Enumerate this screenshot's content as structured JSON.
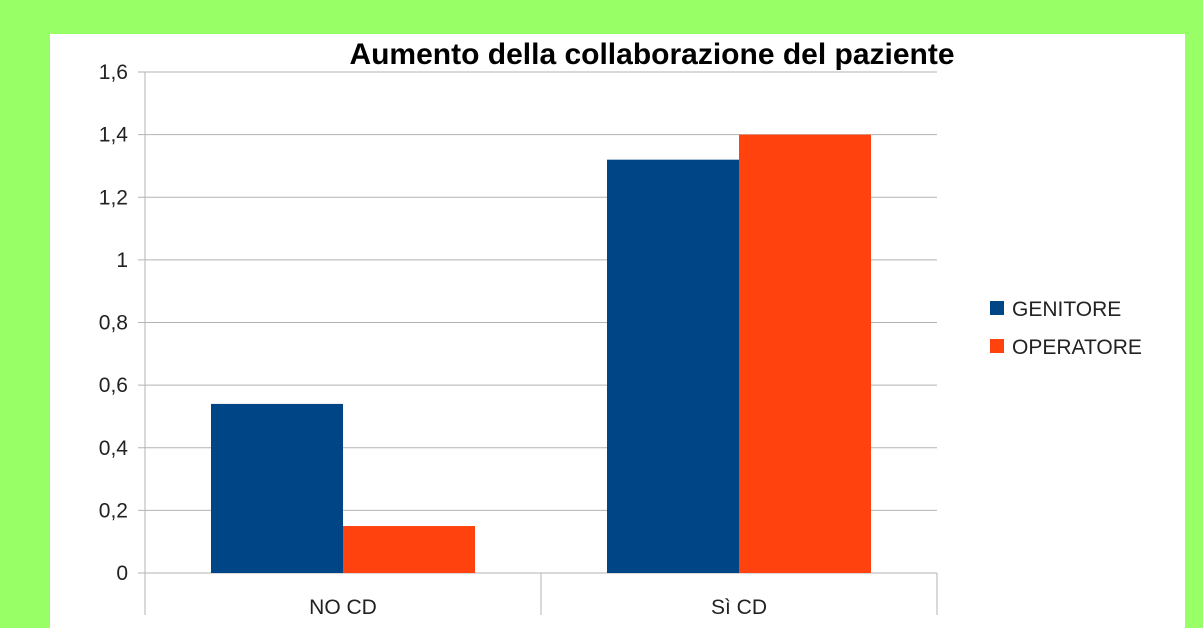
{
  "background_color": "#99ff66",
  "chart_data": {
    "type": "bar",
    "title": "Aumento della collaborazione del paziente",
    "categories": [
      "NO CD",
      "Sì CD"
    ],
    "series": [
      {
        "name": "GENITORE",
        "color": "#004586",
        "values": [
          0.54,
          1.32
        ]
      },
      {
        "name": "OPERATORE",
        "color": "#ff420e",
        "values": [
          0.15,
          1.4
        ]
      }
    ],
    "ylim": [
      0,
      1.6
    ],
    "yticks": [
      "0",
      "0,2",
      "0,4",
      "0,6",
      "0,8",
      "1",
      "1,2",
      "1,4",
      "1,6"
    ],
    "grid": true,
    "legend_position": "right"
  }
}
